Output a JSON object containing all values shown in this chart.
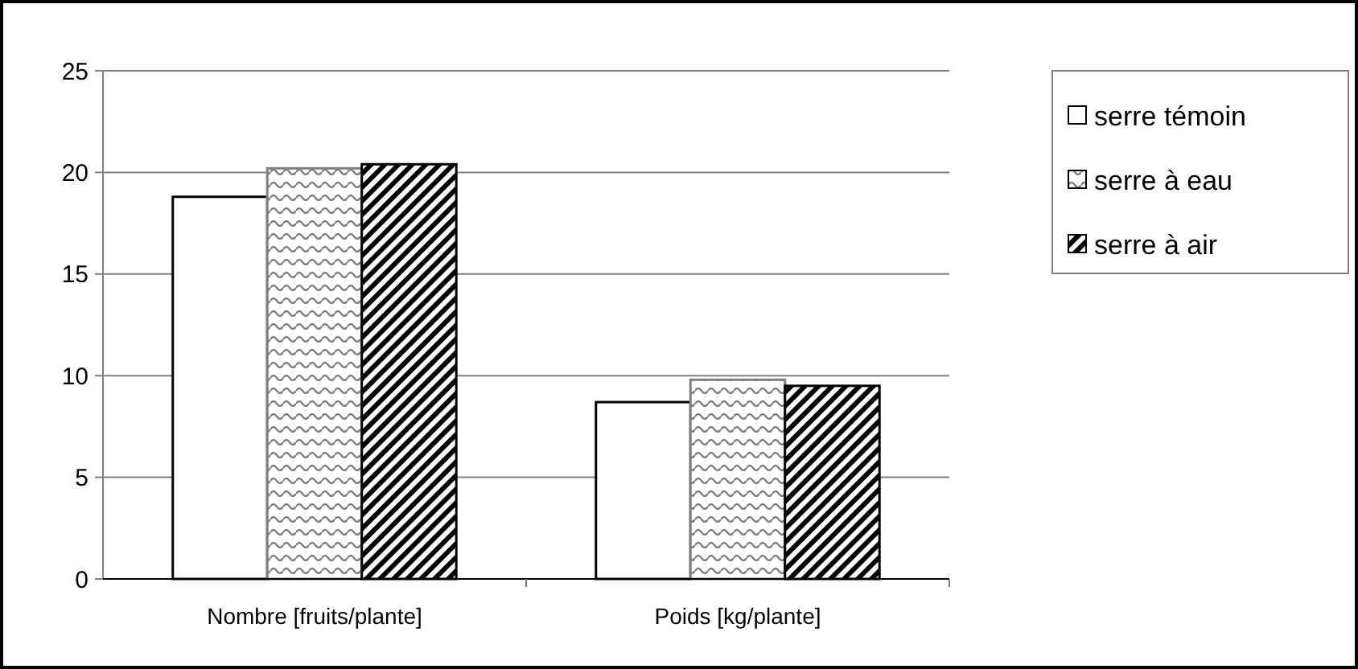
{
  "chart_data": {
    "type": "bar",
    "categories": [
      "Nombre [fruits/plante]",
      "Poids [kg/plante]"
    ],
    "series": [
      {
        "name": "serre témoin",
        "color": "#ffffff",
        "values": [
          18.8,
          8.7
        ]
      },
      {
        "name": "serre à eau",
        "color": "#808080",
        "values": [
          20.2,
          9.8
        ]
      },
      {
        "name": "serre à air",
        "color": "#000000",
        "values": [
          20.4,
          9.5
        ]
      }
    ],
    "ylim": [
      0,
      25
    ],
    "yticks": [
      0,
      5,
      10,
      15,
      20,
      25
    ],
    "grid": "y",
    "legend": "right"
  }
}
